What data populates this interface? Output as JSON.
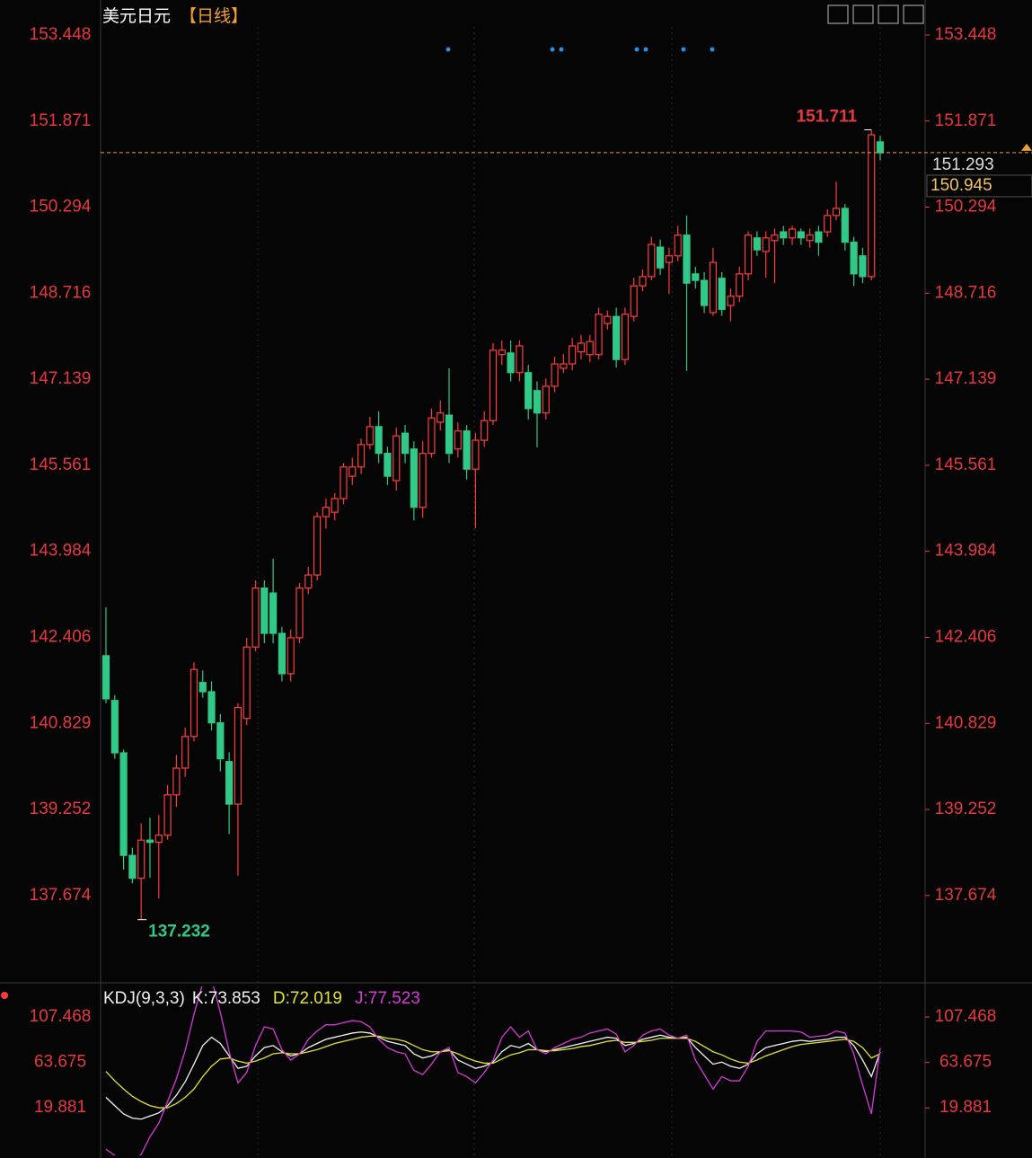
{
  "chart_data": [
    {
      "type": "candlestick",
      "title": "美元日元",
      "subtitle": "【日线】",
      "up_color": "#ff3c3c",
      "down_color": "#30c987",
      "open": [
        142.07,
        141.25,
        140.29,
        138.41,
        137.99,
        138.69,
        138.65,
        138.78,
        139.52,
        140.01,
        140.59,
        141.58,
        141.41,
        140.84,
        140.13,
        139.35,
        140.92,
        142.23,
        143.31,
        143.22,
        142.48,
        141.74,
        142.4,
        143.31,
        143.55,
        144.62,
        144.7,
        144.95,
        145.36,
        145.53,
        145.94,
        146.27,
        145.78,
        145.28,
        146.15,
        145.86,
        144.79,
        145.78,
        146.35,
        146.48,
        145.86,
        146.19,
        145.49,
        146.02,
        146.38,
        147.59,
        147.62,
        147.26,
        147.26,
        146.93,
        146.52,
        147.01,
        147.34,
        147.42,
        147.64,
        147.59,
        147.59,
        148.16,
        148.29,
        147.5,
        148.29,
        148.85,
        149.02,
        149.56,
        149.28,
        149.4,
        149.78,
        149.07,
        148.95,
        148.36,
        148.99,
        148.49,
        148.66,
        149.07,
        149.73,
        149.48,
        149.68,
        149.84,
        149.73,
        149.84,
        149.68,
        149.84,
        149.84,
        150.14,
        150.27,
        149.65,
        149.4,
        149.02,
        151.49
      ],
      "high": [
        142.96,
        141.35,
        140.35,
        138.55,
        139.0,
        139.1,
        139.15,
        139.7,
        140.25,
        140.75,
        141.95,
        141.8,
        141.6,
        141.0,
        140.3,
        141.2,
        142.4,
        143.45,
        143.45,
        143.85,
        142.6,
        142.55,
        143.4,
        143.7,
        144.7,
        144.95,
        145.05,
        145.6,
        145.7,
        146.05,
        146.45,
        146.55,
        145.9,
        146.25,
        146.3,
        146.0,
        146.0,
        146.6,
        146.75,
        147.34,
        146.35,
        146.3,
        146.15,
        146.55,
        147.8,
        147.85,
        147.85,
        147.85,
        147.4,
        147.1,
        147.15,
        147.55,
        147.6,
        147.9,
        147.95,
        147.95,
        148.45,
        148.4,
        148.45,
        148.45,
        149.0,
        149.15,
        149.75,
        149.7,
        149.55,
        149.95,
        150.14,
        149.2,
        149.1,
        149.55,
        149.1,
        148.8,
        149.2,
        149.85,
        149.85,
        149.85,
        149.9,
        149.95,
        149.95,
        149.9,
        149.9,
        149.95,
        150.25,
        150.76,
        150.35,
        149.75,
        149.55,
        151.711,
        151.6
      ],
      "low": [
        141.2,
        140.18,
        138.15,
        137.9,
        137.232,
        138.0,
        137.62,
        138.7,
        139.3,
        139.85,
        140.5,
        141.3,
        140.7,
        139.95,
        138.8,
        138.04,
        140.8,
        142.15,
        142.3,
        142.3,
        141.6,
        141.6,
        142.3,
        143.2,
        143.45,
        144.4,
        144.55,
        144.85,
        145.2,
        145.4,
        145.85,
        145.6,
        145.2,
        145.1,
        145.6,
        144.55,
        144.6,
        145.7,
        146.2,
        145.6,
        145.7,
        145.3,
        144.41,
        145.9,
        146.3,
        147.4,
        147.1,
        147.1,
        146.4,
        145.89,
        146.4,
        146.9,
        147.25,
        147.3,
        147.5,
        147.45,
        147.5,
        148.05,
        147.35,
        147.4,
        148.2,
        148.75,
        148.95,
        149.05,
        148.7,
        149.3,
        147.29,
        148.8,
        148.35,
        148.3,
        148.3,
        148.2,
        148.55,
        148.95,
        149.4,
        149.0,
        148.9,
        149.6,
        149.6,
        149.6,
        149.55,
        149.4,
        149.75,
        150.05,
        149.5,
        148.85,
        148.9,
        148.95,
        151.15
      ],
      "close": [
        141.28,
        140.29,
        138.41,
        137.99,
        138.69,
        138.65,
        138.78,
        139.52,
        140.01,
        140.59,
        141.82,
        141.41,
        140.84,
        140.18,
        139.35,
        141.12,
        142.23,
        143.31,
        142.48,
        142.48,
        141.74,
        142.4,
        143.31,
        143.55,
        144.62,
        144.79,
        144.95,
        145.53,
        145.53,
        145.94,
        146.27,
        145.78,
        145.36,
        146.1,
        145.78,
        144.79,
        145.78,
        146.43,
        146.52,
        145.78,
        146.19,
        145.49,
        146.02,
        146.38,
        147.67,
        147.67,
        147.26,
        147.75,
        146.6,
        146.52,
        147.01,
        147.42,
        147.42,
        147.75,
        147.8,
        147.83,
        148.33,
        148.29,
        147.5,
        148.33,
        148.85,
        149.02,
        149.61,
        149.18,
        149.4,
        149.78,
        148.9,
        148.95,
        148.49,
        149.28,
        148.42,
        148.66,
        149.07,
        149.78,
        149.51,
        149.73,
        149.78,
        149.73,
        149.89,
        149.73,
        149.78,
        149.65,
        150.14,
        150.27,
        149.65,
        149.07,
        149.02,
        151.62,
        151.29
      ],
      "ylim": [
        136.14,
        154.09
      ],
      "yticks": [
        153.448,
        151.871,
        150.294,
        148.716,
        147.139,
        145.561,
        143.984,
        142.406,
        140.829,
        139.252,
        137.674
      ],
      "high_label": "151.711",
      "low_label": "137.232",
      "last_price": 151.293,
      "last_price_color": "#f0a030",
      "price_marker": 150.945
    },
    {
      "type": "line",
      "indicator": "KDJ(9,3,3)",
      "series": [
        {
          "name": "K:73.853",
          "color": "#f2f2f2",
          "values": [
            30,
            22,
            14,
            10,
            9,
            12,
            15,
            22,
            32,
            45,
            62,
            80,
            88,
            82,
            70,
            58,
            60,
            70,
            78,
            80,
            74,
            70,
            72,
            78,
            82,
            86,
            88,
            90,
            92,
            93,
            92,
            88,
            84,
            82,
            80,
            72,
            68,
            70,
            74,
            76,
            66,
            62,
            58,
            60,
            64,
            74,
            80,
            78,
            82,
            76,
            74,
            76,
            78,
            80,
            82,
            84,
            86,
            88,
            87,
            80,
            82,
            86,
            88,
            90,
            88,
            87,
            88,
            78,
            70,
            62,
            64,
            60,
            58,
            62,
            72,
            78,
            80,
            82,
            84,
            85,
            84,
            85,
            86,
            88,
            88,
            80,
            66,
            50,
            73.853
          ]
        },
        {
          "name": "D:72.019",
          "color": "#e3e32a",
          "values": [
            55,
            46,
            38,
            31,
            26,
            22,
            20,
            20,
            24,
            30,
            38,
            50,
            60,
            67,
            68,
            65,
            63,
            65,
            68,
            72,
            73,
            72,
            72,
            74,
            76,
            79,
            82,
            84,
            86,
            88,
            89,
            89,
            87,
            86,
            84,
            80,
            76,
            74,
            74,
            75,
            72,
            68,
            65,
            63,
            63,
            67,
            71,
            73,
            76,
            76,
            75,
            75,
            76,
            77,
            79,
            80,
            82,
            84,
            85,
            83,
            83,
            84,
            85,
            87,
            87,
            87,
            87,
            84,
            79,
            74,
            71,
            67,
            64,
            63,
            66,
            70,
            73,
            76,
            79,
            81,
            82,
            83,
            84,
            85,
            86,
            84,
            78,
            68,
            72.019
          ]
        },
        {
          "name": "J:77.523",
          "color": "#d63ad6",
          "values": [
            -20,
            -26,
            -34,
            -32,
            -25,
            -8,
            5,
            26,
            48,
            75,
            110,
            140,
            144,
            112,
            74,
            44,
            54,
            80,
            98,
            96,
            76,
            66,
            72,
            86,
            94,
            100,
            100,
            102,
            104,
            103,
            98,
            86,
            78,
            74,
            72,
            56,
            52,
            62,
            74,
            78,
            54,
            50,
            44,
            54,
            66,
            88,
            98,
            88,
            94,
            76,
            72,
            78,
            82,
            86,
            88,
            92,
            94,
            96,
            91,
            74,
            80,
            90,
            94,
            96,
            90,
            87,
            90,
            66,
            52,
            38,
            50,
            46,
            46,
            60,
            84,
            94,
            94,
            94,
            94,
            93,
            88,
            89,
            90,
            94,
            92,
            72,
            42,
            14,
            77.523
          ]
        }
      ],
      "ylim": [
        -25,
        137
      ],
      "yticks": [
        107.468,
        63.675,
        19.881
      ]
    }
  ]
}
